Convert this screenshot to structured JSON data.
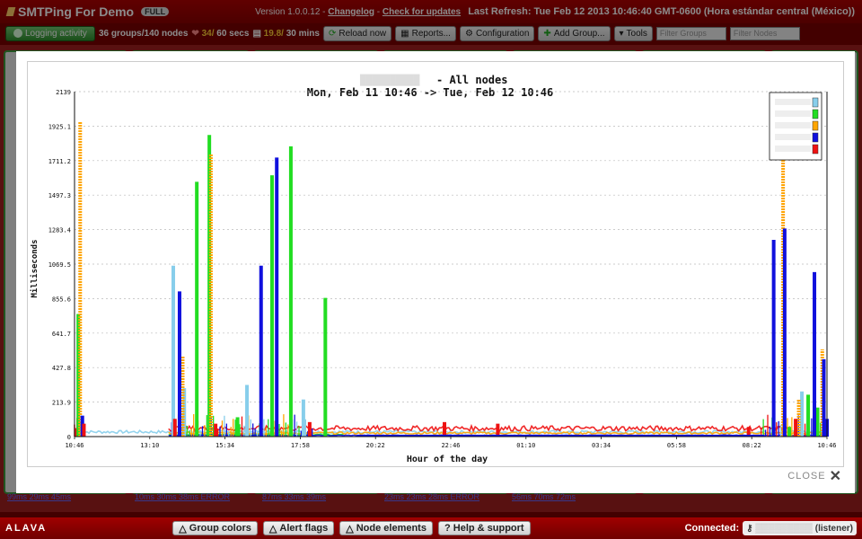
{
  "app": {
    "title": "SMTPing For Demo",
    "badge": "FULL",
    "version_prefix": "Version 1.0.0.12 -",
    "changelog": "Changelog",
    "check_updates": "Check for updates",
    "last_refresh": "Last Refresh: Tue Feb 12 2013 10:46:40 GMT-0600 (Hora estándar central (México))"
  },
  "toolbar": {
    "logging": "Logging activity",
    "groups_nodes": "36 groups/140 nodes",
    "hearts_a": "34/",
    "hearts_b": "60 secs",
    "docs_a": "19.8/",
    "docs_b": "30 mins",
    "reload": "Reload now",
    "reports": "Reports...",
    "configuration": "Configuration",
    "add_group": "Add Group...",
    "tools": "Tools",
    "filter_groups_placeholder": "Filter Groups",
    "filter_nodes_placeholder": "Filter Nodes"
  },
  "dashboard_links": [
    "99ms 29ms 45ms",
    "10ms 30ms 38ms ERROR",
    "87ms 33ms 39ms",
    "23ms 23ms 28ms ERROR",
    "56ms 70ms 72ms"
  ],
  "footer": {
    "brand": "ALAVA",
    "group_colors": "Group colors",
    "alert_flags": "Alert flags",
    "node_elements": "Node elements",
    "help": "Help & support",
    "connected_label": "Connected:",
    "connected_value": "(listener)"
  },
  "modal": {
    "close_label": "CLOSE"
  },
  "chart_data": {
    "type": "line",
    "title_suffix": "- All nodes",
    "subtitle": "Mon, Feb 11 10:46 -> Tue, Feb 12 10:46",
    "xlabel": "Hour of the day",
    "ylabel": "Milliseconds",
    "x_ticks": [
      "10:46",
      "13:10",
      "15:34",
      "17:58",
      "20:22",
      "22:46",
      "01:10",
      "03:34",
      "05:58",
      "08:22",
      "10:46"
    ],
    "y_ticks": [
      0,
      213.9,
      427.8,
      641.7,
      855.6,
      1069.5,
      1283.4,
      1497.3,
      1711.2,
      1925.1,
      2139
    ],
    "ylim": [
      0,
      2139
    ],
    "x_range_hours": [
      0,
      24
    ],
    "grid": "horizontal dashed",
    "legend_position": "top-right",
    "series": [
      {
        "color": "#87ceeb",
        "spikes": [
          [
            0.2,
            90
          ],
          [
            3.15,
            1060
          ],
          [
            3.5,
            300
          ],
          [
            5.5,
            320
          ],
          [
            7.3,
            230
          ],
          [
            23.2,
            280
          ],
          [
            23.6,
            130
          ]
        ]
      },
      {
        "color": "#22dd22",
        "spikes": [
          [
            0.12,
            760
          ],
          [
            3.9,
            1580
          ],
          [
            4.3,
            1870
          ],
          [
            6.3,
            1620
          ],
          [
            6.9,
            1800
          ],
          [
            8.0,
            860
          ],
          [
            5.2,
            120
          ],
          [
            22.8,
            60
          ],
          [
            23.4,
            260
          ],
          [
            23.7,
            180
          ]
        ]
      },
      {
        "color": "#ffa500",
        "spikes": [
          [
            0.18,
            1950
          ],
          [
            3.45,
            500
          ],
          [
            4.35,
            1750
          ],
          [
            22.6,
            1730
          ],
          [
            23.1,
            230
          ],
          [
            23.85,
            540
          ]
        ]
      },
      {
        "color": "#1010dd",
        "spikes": [
          [
            0.25,
            130
          ],
          [
            3.35,
            900
          ],
          [
            5.95,
            1060
          ],
          [
            6.45,
            1730
          ],
          [
            22.3,
            1220
          ],
          [
            22.65,
            1290
          ],
          [
            23.6,
            1020
          ],
          [
            23.9,
            480
          ],
          [
            24.0,
            110
          ]
        ]
      },
      {
        "color": "#ee1111",
        "spikes": [
          [
            0.3,
            80
          ],
          [
            3.2,
            110
          ],
          [
            4.5,
            80
          ],
          [
            7.5,
            90
          ],
          [
            11.8,
            90
          ],
          [
            13.5,
            80
          ],
          [
            21.5,
            60
          ],
          [
            23.0,
            110
          ]
        ]
      }
    ]
  }
}
